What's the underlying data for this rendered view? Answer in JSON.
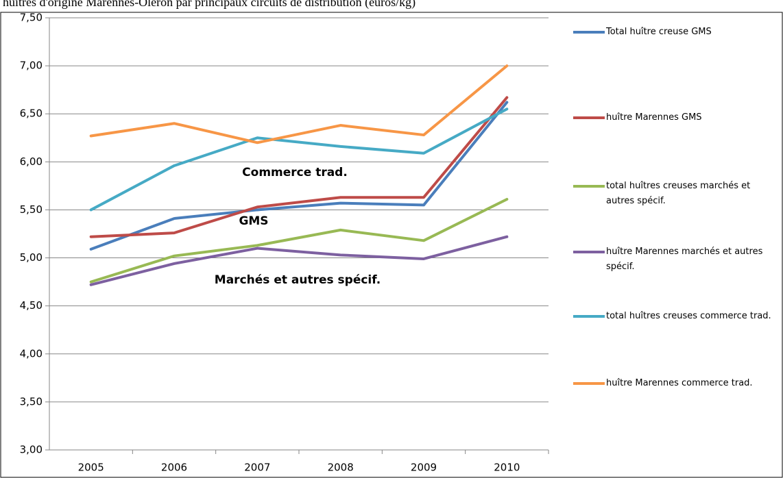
{
  "chart_data": {
    "type": "line",
    "title": "huîtres d'origine Marennes-Oléron par principaux circuits de distribution (euros/kg)",
    "categories": [
      "2005",
      "2006",
      "2007",
      "2008",
      "2009",
      "2010"
    ],
    "series": [
      {
        "name": "Total huître creuse GMS",
        "color": "#4a7ebb",
        "values": [
          5.09,
          5.41,
          5.5,
          5.57,
          5.55,
          6.62
        ]
      },
      {
        "name": "huître Marennes GMS",
        "color": "#be4b48",
        "values": [
          5.22,
          5.26,
          5.53,
          5.63,
          5.63,
          6.67
        ]
      },
      {
        "name": "total huîtres creuses marchés et autres spécif.",
        "color": "#98b954",
        "values": [
          4.75,
          5.02,
          5.13,
          5.29,
          5.18,
          5.61
        ]
      },
      {
        "name": " huître Marennes marchés et autres spécif.",
        "color": "#7d60a0",
        "values": [
          4.72,
          4.94,
          5.1,
          5.03,
          4.99,
          5.22
        ]
      },
      {
        "name": "total huîtres creuses commerce trad.",
        "color": "#46aac5",
        "values": [
          5.5,
          5.96,
          6.25,
          6.16,
          6.09,
          6.55
        ]
      },
      {
        "name": " huître Marennes commerce trad.",
        "color": "#f79646",
        "values": [
          6.27,
          6.4,
          6.2,
          6.38,
          6.28,
          7.0
        ]
      }
    ],
    "ylim": [
      3,
      7.5
    ],
    "yticks": [
      {
        "value": 3,
        "label": "3,00"
      },
      {
        "value": 3.5,
        "label": "3,50"
      },
      {
        "value": 4,
        "label": "4,00"
      },
      {
        "value": 4.5,
        "label": "4,50"
      },
      {
        "value": 5,
        "label": "5,00"
      },
      {
        "value": 5.5,
        "label": "5,50"
      },
      {
        "value": 6,
        "label": "6,00"
      },
      {
        "value": 6.5,
        "label": "6,50"
      },
      {
        "value": 7,
        "label": "7,00"
      },
      {
        "value": 7.5,
        "label": "7,50"
      }
    ],
    "grid": true,
    "legend": "right",
    "annotations": [
      "Commerce trad.",
      "GMS",
      "Marchés et autres spécif."
    ]
  }
}
